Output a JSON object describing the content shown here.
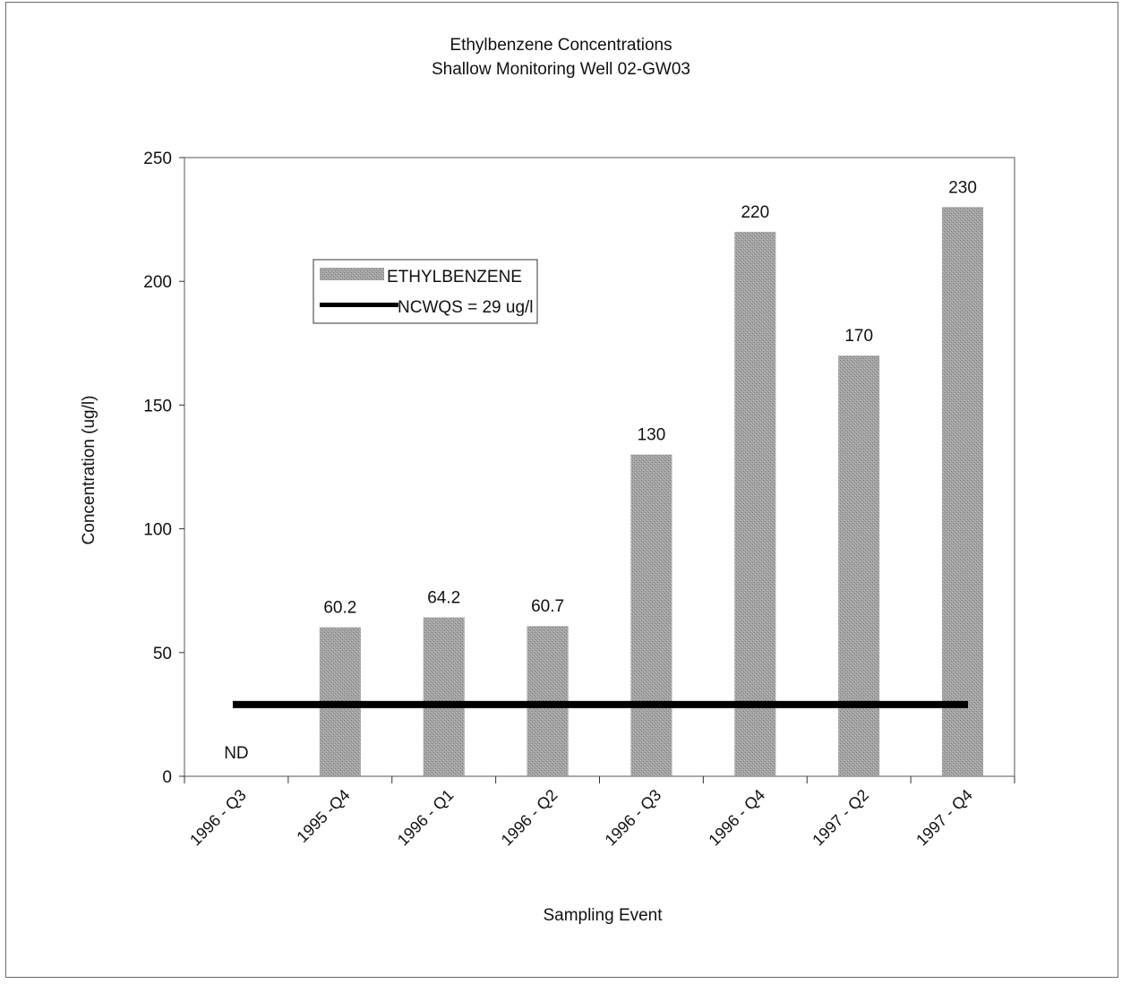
{
  "chart_data": {
    "type": "bar",
    "title": "Ethylbenzene Concentrations",
    "subtitle": "Shallow Monitoring Well 02-GW03",
    "xlabel": "Sampling Event",
    "ylabel": "Concentration (ug/l)",
    "categories": [
      "1996 - Q3",
      "1995 -Q4",
      "1996 - Q1",
      "1996 - Q2",
      "1996 - Q3",
      "1996 - Q4",
      "1997 - Q2",
      "1997 - Q4"
    ],
    "series": [
      {
        "name": "ETHYLBENZENE",
        "values": [
          0,
          60.2,
          64.2,
          60.7,
          130,
          220,
          170,
          230
        ],
        "labels": [
          "ND",
          "60.2",
          "64.2",
          "60.7",
          "130",
          "220",
          "170",
          "230"
        ],
        "color": "#9a9a9a"
      },
      {
        "name": "NCWQS = 29 ug/l",
        "type": "line",
        "value": 29,
        "color": "#000000"
      }
    ],
    "ylim": [
      0,
      250
    ],
    "yticks": [
      "0",
      "50",
      "100",
      "150",
      "200",
      "250"
    ],
    "grid": false,
    "legend": "upper-left inside plot"
  }
}
